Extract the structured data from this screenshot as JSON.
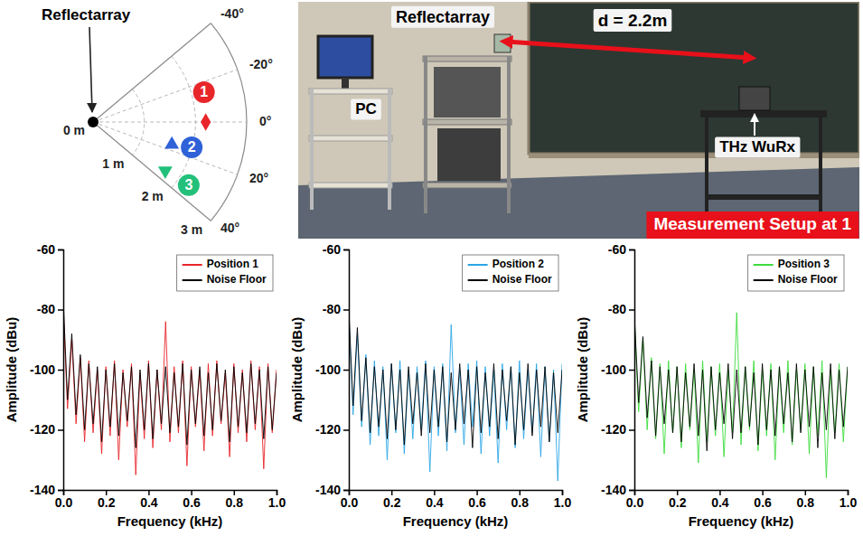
{
  "reflectarray_map": {
    "origin_label": "Reflectarray",
    "rlim": [
      0,
      3
    ],
    "rticks": [
      {
        "value": 0,
        "label": "0 m"
      },
      {
        "value": 1,
        "label": "1 m"
      },
      {
        "value": 2,
        "label": "2 m"
      },
      {
        "value": 3,
        "label": "3 m"
      }
    ],
    "angle_ticks": [
      {
        "value": -40,
        "label": "-40°"
      },
      {
        "value": -20,
        "label": "-20°"
      },
      {
        "value": 0,
        "label": "0°"
      },
      {
        "value": 20,
        "label": "20°"
      },
      {
        "value": 40,
        "label": "40°"
      }
    ],
    "positions": [
      {
        "label": "1",
        "r": 2.2,
        "angle": 0,
        "color": "#e8262a",
        "marker": "diamond"
      },
      {
        "label": "2",
        "r": 1.6,
        "angle": 16,
        "color": "#2f62d8",
        "marker": "triangle-up"
      },
      {
        "label": "3",
        "r": 1.7,
        "angle": 34,
        "color": "#22c07a",
        "marker": "triangle-down"
      }
    ]
  },
  "photo": {
    "reflectarray_label": "Reflectarray",
    "distance_label": "d = 2.2m",
    "pc_label": "PC",
    "receiver_label": "THz WuRx",
    "caption": "Measurement Setup at 1"
  },
  "chart_data": [
    {
      "type": "line",
      "xlabel": "Frequency (kHz)",
      "ylabel": "Amplitude (dBu)",
      "x": [
        0,
        0.02,
        0.04,
        0.06,
        0.08,
        0.1,
        0.12,
        0.14,
        0.16,
        0.18,
        0.2,
        0.22,
        0.24,
        0.26,
        0.28,
        0.3,
        0.32,
        0.34,
        0.36,
        0.38,
        0.4,
        0.42,
        0.44,
        0.46,
        0.48,
        0.5,
        0.52,
        0.54,
        0.56,
        0.58,
        0.6,
        0.62,
        0.64,
        0.66,
        0.68,
        0.7,
        0.72,
        0.74,
        0.76,
        0.78,
        0.8,
        0.82,
        0.84,
        0.86,
        0.88,
        0.9,
        0.92,
        0.94,
        0.96,
        0.98,
        1
      ],
      "xlim": [
        0,
        1
      ],
      "xticks": [
        {
          "value": 0,
          "label": "0.0"
        },
        0.2,
        0.4,
        0.6,
        0.8,
        {
          "value": 1,
          "label": "1.0"
        }
      ],
      "ylim": [
        -140,
        -60
      ],
      "yticks": [
        -140,
        -120,
        -100,
        -80,
        -60
      ],
      "legend": "upper right",
      "series": [
        {
          "name": "Position 1",
          "color": "#e8262a",
          "values": [
            -80,
            -113,
            -90,
            -118,
            -96,
            -124,
            -97,
            -121,
            -100,
            -128,
            -99,
            -122,
            -97,
            -130,
            -100,
            -119,
            -98,
            -135,
            -101,
            -123,
            -97,
            -126,
            -100,
            -120,
            -84,
            -124,
            -99,
            -121,
            -97,
            -132,
            -99,
            -119,
            -100,
            -127,
            -98,
            -122,
            -97,
            -118,
            -101,
            -129,
            -98,
            -121,
            -100,
            -124,
            -97,
            -120,
            -99,
            -133,
            -98,
            -121,
            -100
          ]
        },
        {
          "name": "Noise Floor",
          "color": "#000000",
          "values": [
            -77,
            -110,
            -88,
            -115,
            -95,
            -120,
            -98,
            -118,
            -99,
            -124,
            -100,
            -119,
            -98,
            -122,
            -101,
            -117,
            -99,
            -126,
            -100,
            -120,
            -98,
            -123,
            -100,
            -118,
            -99,
            -121,
            -101,
            -119,
            -98,
            -125,
            -100,
            -118,
            -99,
            -122,
            -101,
            -120,
            -98,
            -117,
            -100,
            -124,
            -99,
            -119,
            -101,
            -121,
            -98,
            -118,
            -100,
            -123,
            -99,
            -120,
            -101
          ]
        }
      ]
    },
    {
      "type": "line",
      "xlabel": "Frequency (kHz)",
      "ylabel": "Amplitude (dBu)",
      "x": [
        0,
        0.02,
        0.04,
        0.06,
        0.08,
        0.1,
        0.12,
        0.14,
        0.16,
        0.18,
        0.2,
        0.22,
        0.24,
        0.26,
        0.28,
        0.3,
        0.32,
        0.34,
        0.36,
        0.38,
        0.4,
        0.42,
        0.44,
        0.46,
        0.48,
        0.5,
        0.52,
        0.54,
        0.56,
        0.58,
        0.6,
        0.62,
        0.64,
        0.66,
        0.68,
        0.7,
        0.72,
        0.74,
        0.76,
        0.78,
        0.8,
        0.82,
        0.84,
        0.86,
        0.88,
        0.9,
        0.92,
        0.94,
        0.96,
        0.98,
        1
      ],
      "xlim": [
        0,
        1
      ],
      "xticks": [
        {
          "value": 0,
          "label": "0.0"
        },
        0.2,
        0.4,
        0.6,
        0.8,
        {
          "value": 1,
          "label": "1.0"
        }
      ],
      "ylim": [
        -140,
        -60
      ],
      "yticks": [
        -140,
        -120,
        -100,
        -80,
        -60
      ],
      "legend": "upper right",
      "series": [
        {
          "name": "Position 2",
          "color": "#2aa6e6",
          "values": [
            -82,
            -115,
            -88,
            -119,
            -95,
            -125,
            -97,
            -122,
            -99,
            -130,
            -98,
            -121,
            -97,
            -128,
            -100,
            -123,
            -99,
            -120,
            -97,
            -134,
            -99,
            -122,
            -98,
            -127,
            -85,
            -121,
            -100,
            -125,
            -98,
            -119,
            -97,
            -128,
            -99,
            -122,
            -100,
            -131,
            -98,
            -120,
            -99,
            -126,
            -97,
            -123,
            -100,
            -121,
            -98,
            -129,
            -99,
            -124,
            -100,
            -137,
            -98
          ]
        },
        {
          "name": "Noise Floor",
          "color": "#000000",
          "values": [
            -80,
            -112,
            -86,
            -117,
            -96,
            -121,
            -99,
            -119,
            -100,
            -123,
            -98,
            -120,
            -100,
            -125,
            -99,
            -118,
            -101,
            -122,
            -98,
            -121,
            -100,
            -119,
            -99,
            -124,
            -101,
            -120,
            -98,
            -118,
            -100,
            -126,
            -99,
            -121,
            -101,
            -119,
            -98,
            -123,
            -100,
            -117,
            -99,
            -125,
            -101,
            -120,
            -98,
            -122,
            -100,
            -119,
            -99,
            -124,
            -101,
            -121,
            -100
          ]
        }
      ]
    },
    {
      "type": "line",
      "xlabel": "Frequency (kHz)",
      "ylabel": "Amplitude (dBu)",
      "x": [
        0,
        0.02,
        0.04,
        0.06,
        0.08,
        0.1,
        0.12,
        0.14,
        0.16,
        0.18,
        0.2,
        0.22,
        0.24,
        0.26,
        0.28,
        0.3,
        0.32,
        0.34,
        0.36,
        0.38,
        0.4,
        0.42,
        0.44,
        0.46,
        0.48,
        0.5,
        0.52,
        0.54,
        0.56,
        0.58,
        0.6,
        0.62,
        0.64,
        0.66,
        0.68,
        0.7,
        0.72,
        0.74,
        0.76,
        0.78,
        0.8,
        0.82,
        0.84,
        0.86,
        0.88,
        0.9,
        0.92,
        0.94,
        0.96,
        0.98,
        1
      ],
      "xlim": [
        0,
        1
      ],
      "xticks": [
        {
          "value": 0,
          "label": "0.0"
        },
        0.2,
        0.4,
        0.6,
        0.8,
        {
          "value": 1,
          "label": "1.0"
        }
      ],
      "ylim": [
        -140,
        -60
      ],
      "yticks": [
        -140,
        -120,
        -100,
        -80,
        -60
      ],
      "legend": "upper right",
      "series": [
        {
          "name": "Position 3",
          "color": "#3ddc3d",
          "values": [
            -83,
            -114,
            -90,
            -120,
            -96,
            -123,
            -98,
            -128,
            -97,
            -121,
            -99,
            -126,
            -98,
            -120,
            -100,
            -131,
            -97,
            -124,
            -99,
            -122,
            -98,
            -129,
            -100,
            -121,
            -81,
            -125,
            -99,
            -120,
            -97,
            -127,
            -100,
            -122,
            -98,
            -130,
            -99,
            -121,
            -97,
            -125,
            -100,
            -120,
            -98,
            -128,
            -99,
            -122,
            -97,
            -136,
            -100,
            -121,
            -98,
            -124,
            -99
          ]
        },
        {
          "name": "Noise Floor",
          "color": "#000000",
          "values": [
            -82,
            -111,
            -89,
            -116,
            -97,
            -122,
            -99,
            -118,
            -100,
            -121,
            -99,
            -124,
            -101,
            -119,
            -98,
            -122,
            -100,
            -127,
            -99,
            -120,
            -101,
            -118,
            -98,
            -123,
            -100,
            -121,
            -99,
            -119,
            -101,
            -125,
            -98,
            -120,
            -100,
            -122,
            -99,
            -118,
            -101,
            -124,
            -98,
            -121,
            -100,
            -119,
            -99,
            -126,
            -101,
            -120,
            -98,
            -123,
            -100,
            -119,
            -99
          ]
        }
      ]
    }
  ]
}
